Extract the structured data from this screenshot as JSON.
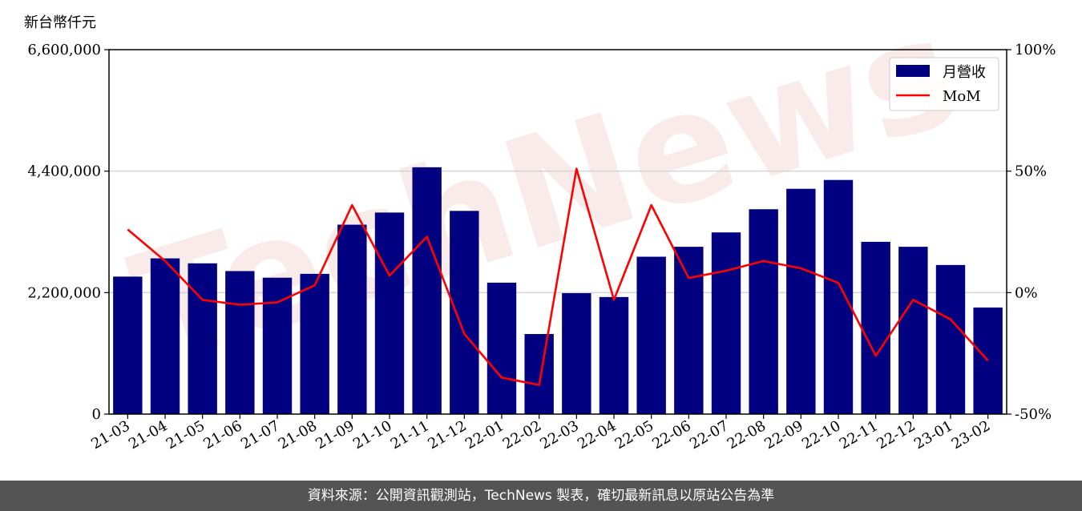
{
  "chart_data": {
    "type": "bar+line",
    "y_left_unit": "新台幣仟元",
    "categories": [
      "21-03",
      "21-04",
      "21-05",
      "21-06",
      "21-07",
      "21-08",
      "21-09",
      "21-10",
      "21-11",
      "21-12",
      "22-01",
      "22-02",
      "22-03",
      "22-04",
      "22-05",
      "22-06",
      "22-07",
      "22-08",
      "22-09",
      "22-10",
      "22-11",
      "22-12",
      "23-01",
      "23-02"
    ],
    "series": [
      {
        "name": "月營收",
        "kind": "bar",
        "axis": "left",
        "color": "#000080",
        "values": [
          2490000,
          2820000,
          2730000,
          2590000,
          2470000,
          2540000,
          3430000,
          3650000,
          4470000,
          3680000,
          2380000,
          1450000,
          2190000,
          2120000,
          2850000,
          3030000,
          3290000,
          3710000,
          4080000,
          4240000,
          3120000,
          3030000,
          2700000,
          1930000
        ]
      },
      {
        "name": "MoM",
        "kind": "line",
        "axis": "right",
        "color": "#ff0000",
        "values": [
          26,
          13,
          -3,
          -5,
          -4,
          3,
          36,
          7,
          23,
          -17,
          -35,
          -38,
          51,
          -3,
          36,
          6,
          9,
          13,
          10,
          4,
          -26,
          -3,
          -11,
          -28
        ]
      }
    ],
    "y_left": {
      "min": 0,
      "max": 6600000,
      "ticks": [
        0,
        2200000,
        4400000,
        6600000
      ],
      "tick_labels": [
        "0",
        "2,200,000",
        "4,400,000",
        "6,600,000"
      ]
    },
    "y_right": {
      "min": -50,
      "max": 100,
      "ticks": [
        -50,
        0,
        50,
        100
      ],
      "tick_labels": [
        "-50%",
        "0%",
        "50%",
        "100%"
      ]
    },
    "grid": "horizontal",
    "legend_position": "top-right"
  },
  "watermark": "TechNews",
  "footer": "資料來源：公開資訊觀測站，TechNews 製表，確切最新訊息以原站公告為準"
}
